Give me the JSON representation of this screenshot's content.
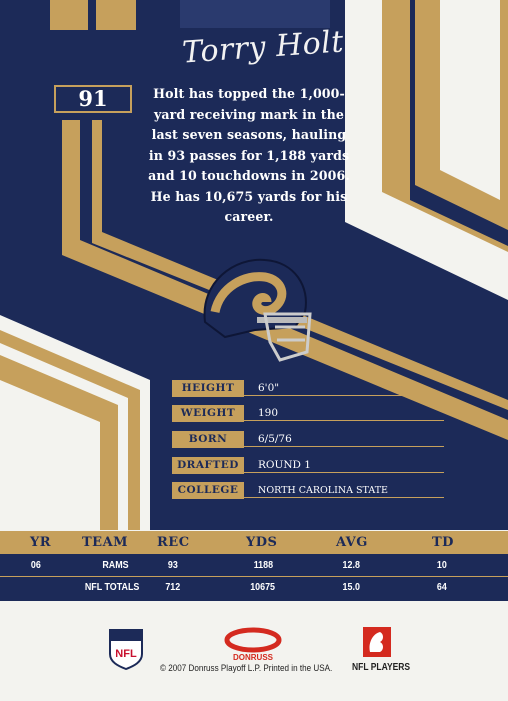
{
  "player": {
    "signature": "Torry Holt",
    "number": "91",
    "bio": "Holt has topped the 1,000-yard receiving mark in the last seven seasons, hauling in 93 passes for 1,188 yards and 10 touchdowns in 2006. He has 10,675 yards for his career."
  },
  "vitals": [
    {
      "label": "HEIGHT",
      "value": "6'0\""
    },
    {
      "label": "WEIGHT",
      "value": "190"
    },
    {
      "label": "BORN",
      "value": "6/5/76"
    },
    {
      "label": "DRAFTED",
      "value": "ROUND 1"
    },
    {
      "label": "COLLEGE",
      "value": "NORTH CAROLINA STATE"
    }
  ],
  "stats": {
    "headers": [
      "YR",
      "TEAM",
      "REC",
      "YDS",
      "AVG",
      "TD"
    ],
    "rows": [
      [
        "06",
        "RAMS",
        "93",
        "1188",
        "12.8",
        "10"
      ],
      [
        "",
        "NFL TOTALS",
        "712",
        "10675",
        "15.0",
        "64"
      ]
    ]
  },
  "footer": {
    "copyright": "© 2007 Donruss Playoff L.P. Printed in the USA.",
    "donruss": "DONRUSS",
    "nfl_players": "NFL PLAYERS",
    "nfl_shield": "NFL"
  },
  "colors": {
    "navy": "#1c2a58",
    "gold": "#c6a05c",
    "cream": "#f3f3ef"
  }
}
